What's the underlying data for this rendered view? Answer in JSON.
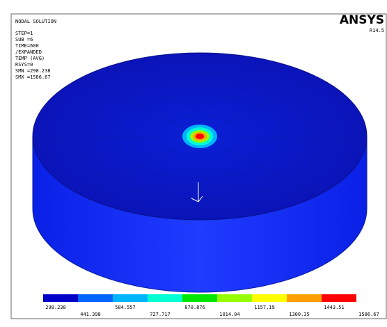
{
  "header": {
    "title": "NODAL SOLUTION",
    "lines": [
      "STEP=1",
      "SUB =6",
      "TIME=600",
      "/EXPANDED",
      "TEMP     (AVG)",
      "RSYS=0",
      "SMN =298.238",
      "SMX =1586.67"
    ]
  },
  "logo": {
    "name": "ANSYS",
    "version": "R14.5"
  },
  "legend": {
    "labels": [
      "298.238",
      "441.398",
      "584.557",
      "727.717",
      "870.876",
      "1014.04",
      "1157.19",
      "1300.35",
      "1443.51",
      "1586.67"
    ],
    "colors": [
      "#0000c8",
      "#0064ff",
      "#00b4ff",
      "#00ffd2",
      "#00e600",
      "#96ff00",
      "#ffff00",
      "#ffa000",
      "#ff0000"
    ]
  }
}
